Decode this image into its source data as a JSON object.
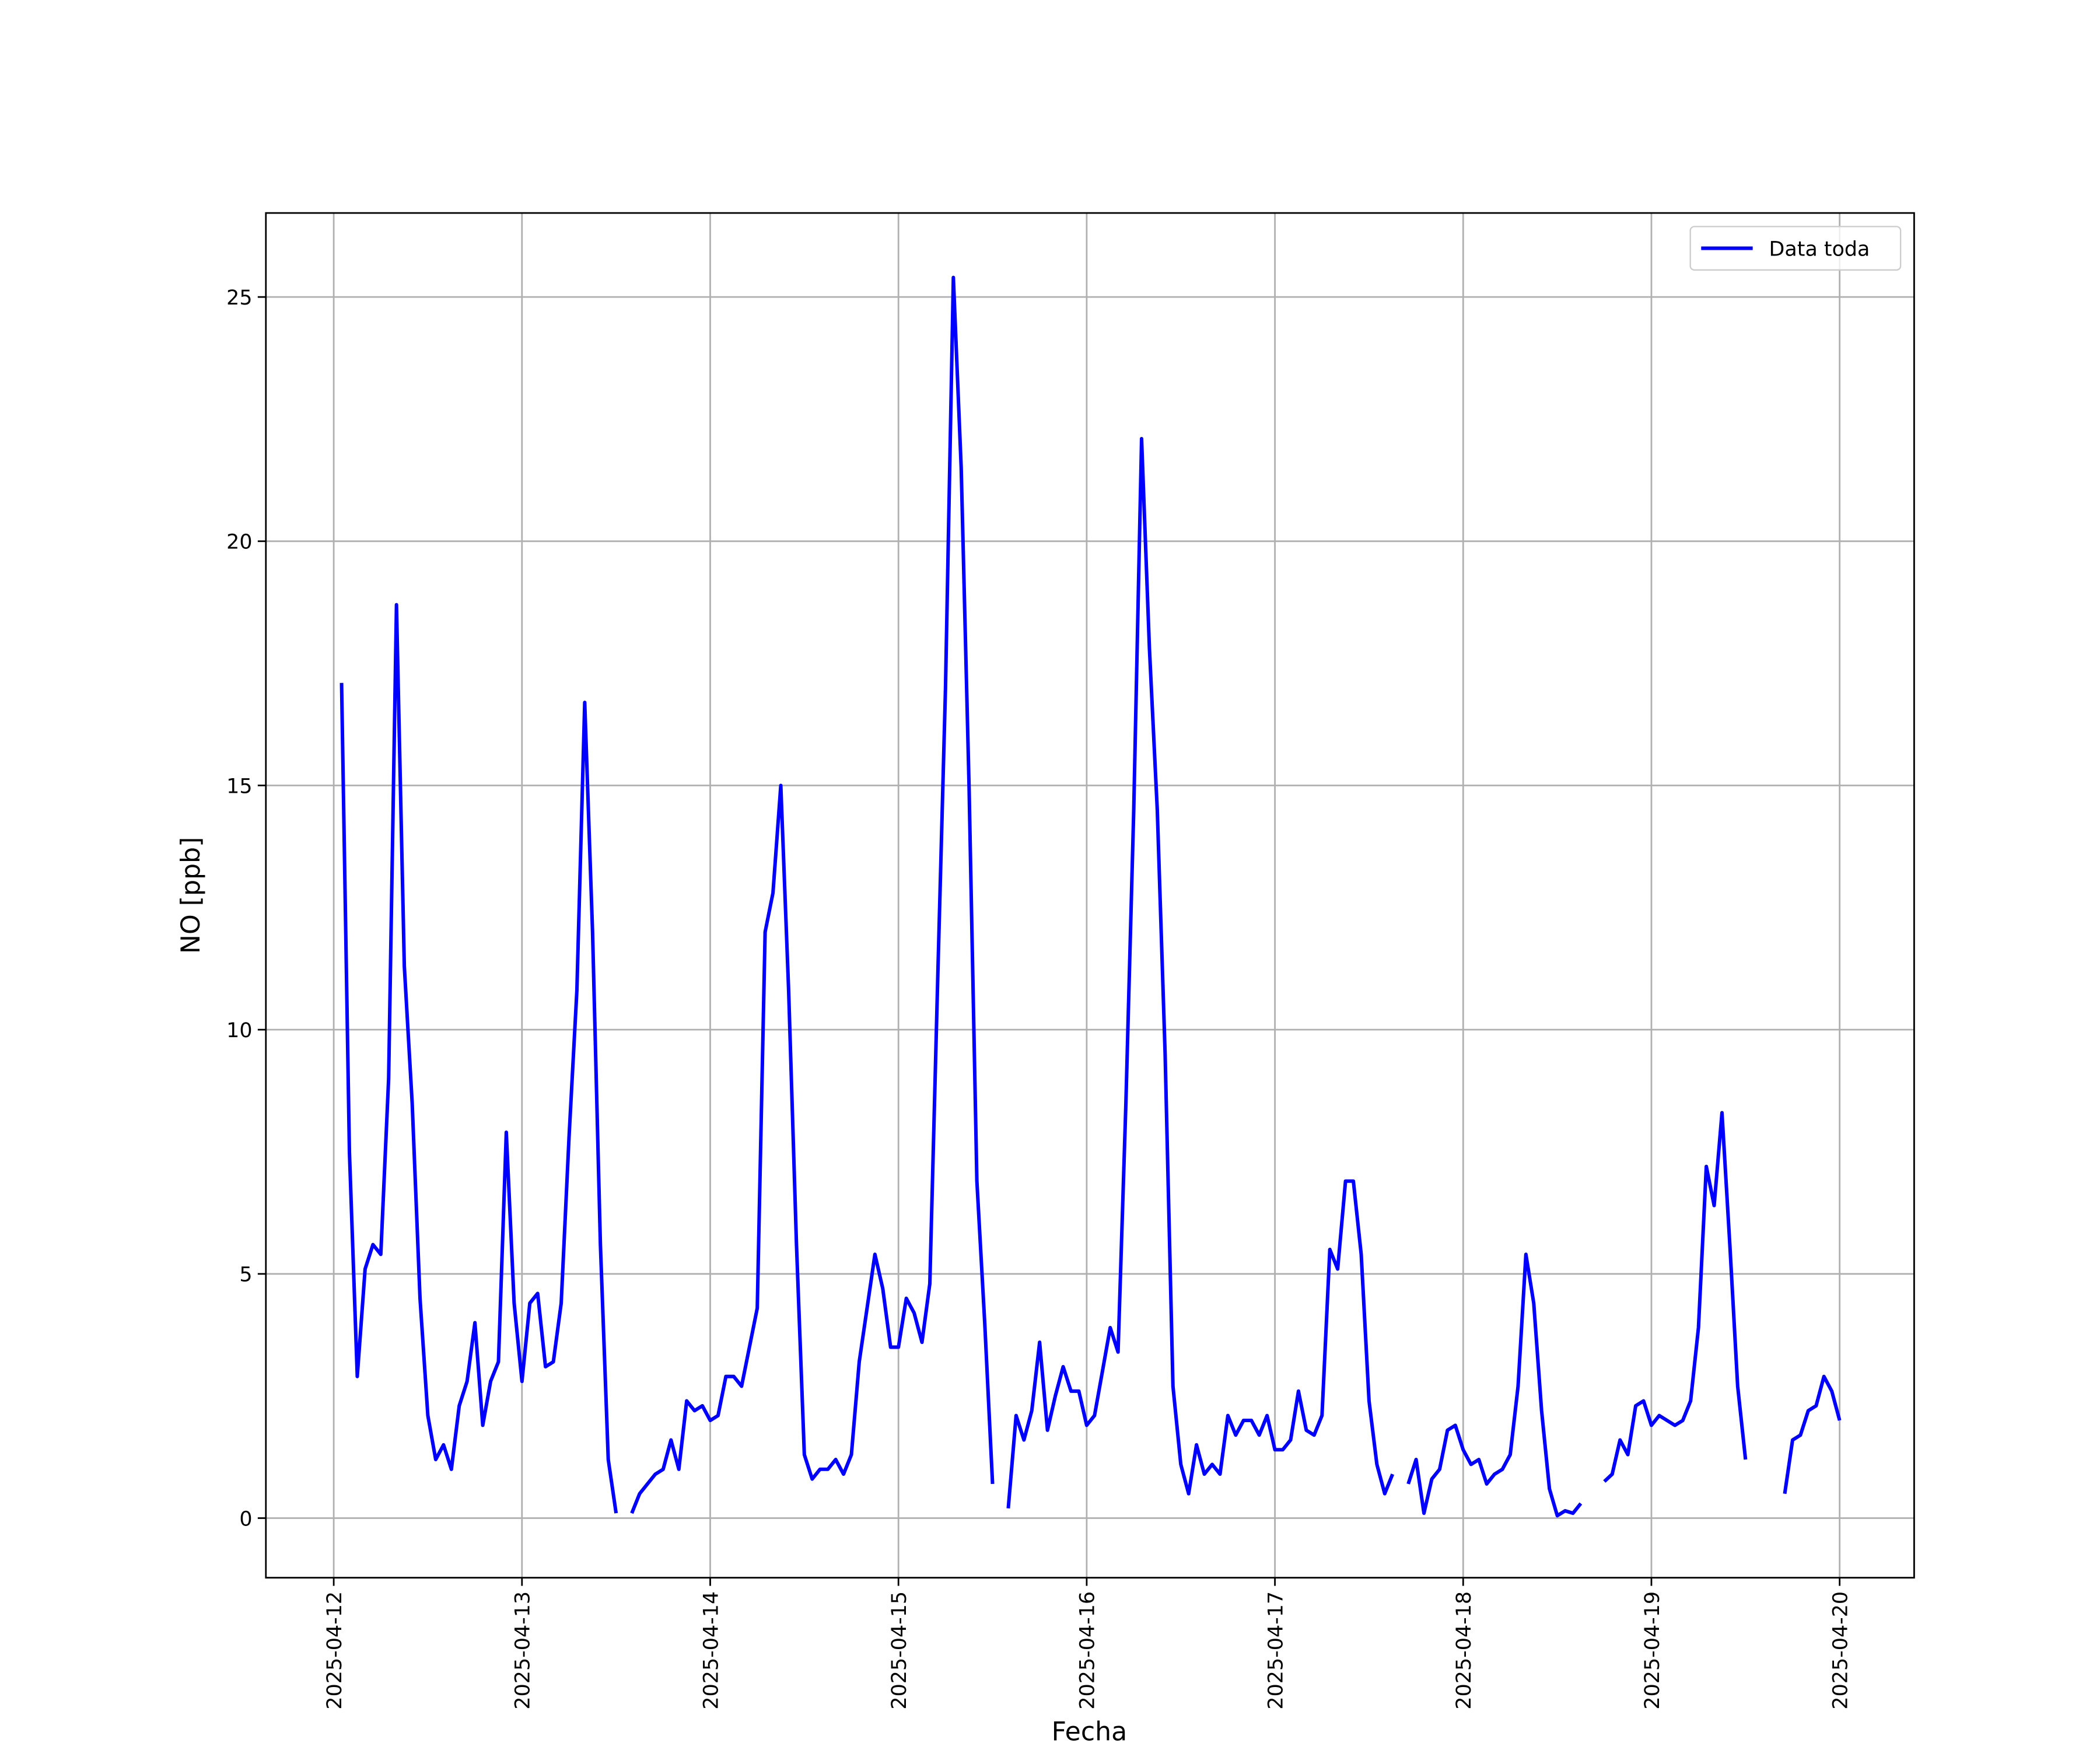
{
  "chart_data": {
    "type": "line",
    "x_label": "Fecha",
    "y_label": "NO [ppb]",
    "x": [
      "2025-04-12 01:00",
      "2025-04-12 02:00",
      "2025-04-12 03:00",
      "2025-04-12 04:00",
      "2025-04-12 05:00",
      "2025-04-12 06:00",
      "2025-04-12 07:00",
      "2025-04-12 08:00",
      "2025-04-12 09:00",
      "2025-04-12 10:00",
      "2025-04-12 11:00",
      "2025-04-12 12:00",
      "2025-04-12 13:00",
      "2025-04-12 14:00",
      "2025-04-12 15:00",
      "2025-04-12 16:00",
      "2025-04-12 17:00",
      "2025-04-12 18:00",
      "2025-04-12 19:00",
      "2025-04-12 20:00",
      "2025-04-12 21:00",
      "2025-04-12 22:00",
      "2025-04-12 23:00",
      "2025-04-13 00:00",
      "2025-04-13 01:00",
      "2025-04-13 02:00",
      "2025-04-13 03:00",
      "2025-04-13 04:00",
      "2025-04-13 05:00",
      "2025-04-13 06:00",
      "2025-04-13 07:00",
      "2025-04-13 08:00",
      "2025-04-13 09:00",
      "2025-04-13 10:00",
      "2025-04-13 11:00",
      "2025-04-13 12:00",
      "2025-04-13 13:00",
      "2025-04-13 14:00",
      "2025-04-13 15:00",
      "2025-04-13 16:00",
      "2025-04-13 17:00",
      "2025-04-13 18:00",
      "2025-04-13 19:00",
      "2025-04-13 20:00",
      "2025-04-13 21:00",
      "2025-04-13 22:00",
      "2025-04-13 23:00",
      "2025-04-14 00:00",
      "2025-04-14 01:00",
      "2025-04-14 02:00",
      "2025-04-14 03:00",
      "2025-04-14 04:00",
      "2025-04-14 05:00",
      "2025-04-14 06:00",
      "2025-04-14 07:00",
      "2025-04-14 08:00",
      "2025-04-14 09:00",
      "2025-04-14 10:00",
      "2025-04-14 11:00",
      "2025-04-14 12:00",
      "2025-04-14 13:00",
      "2025-04-14 14:00",
      "2025-04-14 15:00",
      "2025-04-14 16:00",
      "2025-04-14 17:00",
      "2025-04-14 18:00",
      "2025-04-14 19:00",
      "2025-04-14 20:00",
      "2025-04-14 21:00",
      "2025-04-14 22:00",
      "2025-04-14 23:00",
      "2025-04-15 00:00",
      "2025-04-15 01:00",
      "2025-04-15 02:00",
      "2025-04-15 03:00",
      "2025-04-15 04:00",
      "2025-04-15 05:00",
      "2025-04-15 06:00",
      "2025-04-15 07:00",
      "2025-04-15 08:00",
      "2025-04-15 09:00",
      "2025-04-15 10:00",
      "2025-04-15 11:00",
      "2025-04-15 12:00",
      "2025-04-15 13:00",
      "2025-04-15 14:00",
      "2025-04-15 15:00",
      "2025-04-15 16:00",
      "2025-04-15 17:00",
      "2025-04-15 18:00",
      "2025-04-15 19:00",
      "2025-04-15 20:00",
      "2025-04-15 21:00",
      "2025-04-15 22:00",
      "2025-04-15 23:00",
      "2025-04-16 00:00",
      "2025-04-16 01:00",
      "2025-04-16 02:00",
      "2025-04-16 03:00",
      "2025-04-16 04:00",
      "2025-04-16 05:00",
      "2025-04-16 06:00",
      "2025-04-16 07:00",
      "2025-04-16 08:00",
      "2025-04-16 09:00",
      "2025-04-16 10:00",
      "2025-04-16 11:00",
      "2025-04-16 12:00",
      "2025-04-16 13:00",
      "2025-04-16 14:00",
      "2025-04-16 15:00",
      "2025-04-16 16:00",
      "2025-04-16 17:00",
      "2025-04-16 18:00",
      "2025-04-16 19:00",
      "2025-04-16 20:00",
      "2025-04-16 21:00",
      "2025-04-16 22:00",
      "2025-04-16 23:00",
      "2025-04-17 00:00",
      "2025-04-17 01:00",
      "2025-04-17 02:00",
      "2025-04-17 03:00",
      "2025-04-17 04:00",
      "2025-04-17 05:00",
      "2025-04-17 06:00",
      "2025-04-17 07:00",
      "2025-04-17 08:00",
      "2025-04-17 09:00",
      "2025-04-17 10:00",
      "2025-04-17 11:00",
      "2025-04-17 12:00",
      "2025-04-17 13:00",
      "2025-04-17 14:00",
      "2025-04-17 15:00",
      "2025-04-17 16:00",
      "2025-04-17 17:00",
      "2025-04-17 18:00",
      "2025-04-17 19:00",
      "2025-04-17 20:00",
      "2025-04-17 21:00",
      "2025-04-17 22:00",
      "2025-04-17 23:00",
      "2025-04-18 00:00",
      "2025-04-18 01:00",
      "2025-04-18 02:00",
      "2025-04-18 03:00",
      "2025-04-18 04:00",
      "2025-04-18 05:00",
      "2025-04-18 06:00",
      "2025-04-18 07:00",
      "2025-04-18 08:00",
      "2025-04-18 09:00",
      "2025-04-18 10:00",
      "2025-04-18 11:00",
      "2025-04-18 12:00",
      "2025-04-18 13:00",
      "2025-04-18 14:00",
      "2025-04-18 15:00",
      "2025-04-18 16:00",
      "2025-04-18 17:00",
      "2025-04-18 18:00",
      "2025-04-18 19:00",
      "2025-04-18 20:00",
      "2025-04-18 21:00",
      "2025-04-18 22:00",
      "2025-04-18 23:00",
      "2025-04-19 00:00",
      "2025-04-19 01:00",
      "2025-04-19 02:00",
      "2025-04-19 03:00",
      "2025-04-19 04:00",
      "2025-04-19 05:00",
      "2025-04-19 06:00",
      "2025-04-19 07:00",
      "2025-04-19 08:00",
      "2025-04-19 09:00",
      "2025-04-19 10:00",
      "2025-04-19 11:00",
      "2025-04-19 12:00",
      "2025-04-19 13:00",
      "2025-04-19 14:00",
      "2025-04-19 15:00",
      "2025-04-19 16:00",
      "2025-04-19 17:00",
      "2025-04-19 18:00",
      "2025-04-19 19:00",
      "2025-04-19 20:00",
      "2025-04-19 21:00",
      "2025-04-19 22:00",
      "2025-04-19 23:00",
      "2025-04-20 00:00"
    ],
    "series": [
      {
        "name": "Data toda",
        "color": "#0000ff",
        "values": [
          17.1,
          7.5,
          2.9,
          5.1,
          5.6,
          5.4,
          9.0,
          18.7,
          11.3,
          8.5,
          4.5,
          2.1,
          1.2,
          1.5,
          1.0,
          2.3,
          2.8,
          4.0,
          1.9,
          2.8,
          3.2,
          7.9,
          4.4,
          2.8,
          4.4,
          4.6,
          3.1,
          3.2,
          4.4,
          7.8,
          10.8,
          16.7,
          12.0,
          5.6,
          1.2,
          0.1,
          null,
          0.1,
          0.5,
          0.7,
          0.9,
          1.0,
          1.6,
          1.0,
          2.4,
          2.2,
          2.3,
          2.0,
          2.1,
          2.9,
          2.9,
          2.7,
          3.5,
          4.3,
          12.0,
          12.8,
          15.0,
          10.8,
          5.6,
          1.3,
          0.8,
          1.0,
          1.0,
          1.2,
          0.9,
          1.3,
          3.2,
          4.3,
          5.4,
          4.7,
          3.5,
          3.5,
          4.5,
          4.2,
          3.6,
          4.8,
          11.0,
          17.0,
          25.4,
          21.5,
          15.0,
          6.9,
          4.0,
          0.7,
          null,
          0.2,
          2.1,
          1.6,
          2.2,
          3.6,
          1.8,
          2.5,
          3.1,
          2.6,
          2.6,
          1.9,
          2.1,
          3.0,
          3.9,
          3.4,
          8.5,
          14.5,
          22.1,
          17.8,
          14.5,
          9.5,
          2.7,
          1.1,
          0.5,
          1.5,
          0.9,
          1.1,
          0.9,
          2.1,
          1.7,
          2.0,
          2.0,
          1.7,
          2.1,
          1.4,
          1.4,
          1.6,
          2.6,
          1.8,
          1.7,
          2.1,
          5.5,
          5.1,
          6.9,
          6.9,
          5.4,
          2.4,
          1.1,
          0.5,
          0.9,
          null,
          0.7,
          1.2,
          0.1,
          0.8,
          1.0,
          1.8,
          1.9,
          1.4,
          1.1,
          1.2,
          0.7,
          0.9,
          1.0,
          1.3,
          2.7,
          5.4,
          4.4,
          2.2,
          0.6,
          0.05,
          0.15,
          0.1,
          0.3,
          null,
          null,
          0.75,
          0.9,
          1.6,
          1.3,
          2.3,
          2.4,
          1.9,
          2.1,
          2.0,
          1.9,
          2.0,
          2.4,
          3.9,
          7.2,
          6.4,
          8.3,
          5.6,
          2.7,
          1.2,
          null,
          null,
          null,
          null,
          0.5,
          1.6,
          1.7,
          2.2,
          2.3,
          2.9,
          2.6,
          2.0
        ]
      }
    ],
    "xlim": [
      "2025-04-11 15:21",
      "2025-04-20 09:30"
    ],
    "xticks": [
      "2025-04-12",
      "2025-04-13",
      "2025-04-14",
      "2025-04-15",
      "2025-04-16",
      "2025-04-17",
      "2025-04-18",
      "2025-04-19",
      "2025-04-20"
    ],
    "ylim": [
      -1.22,
      26.72
    ],
    "yticks": [
      0,
      5,
      10,
      15,
      20,
      25
    ],
    "grid": true,
    "legend": "upper right"
  }
}
